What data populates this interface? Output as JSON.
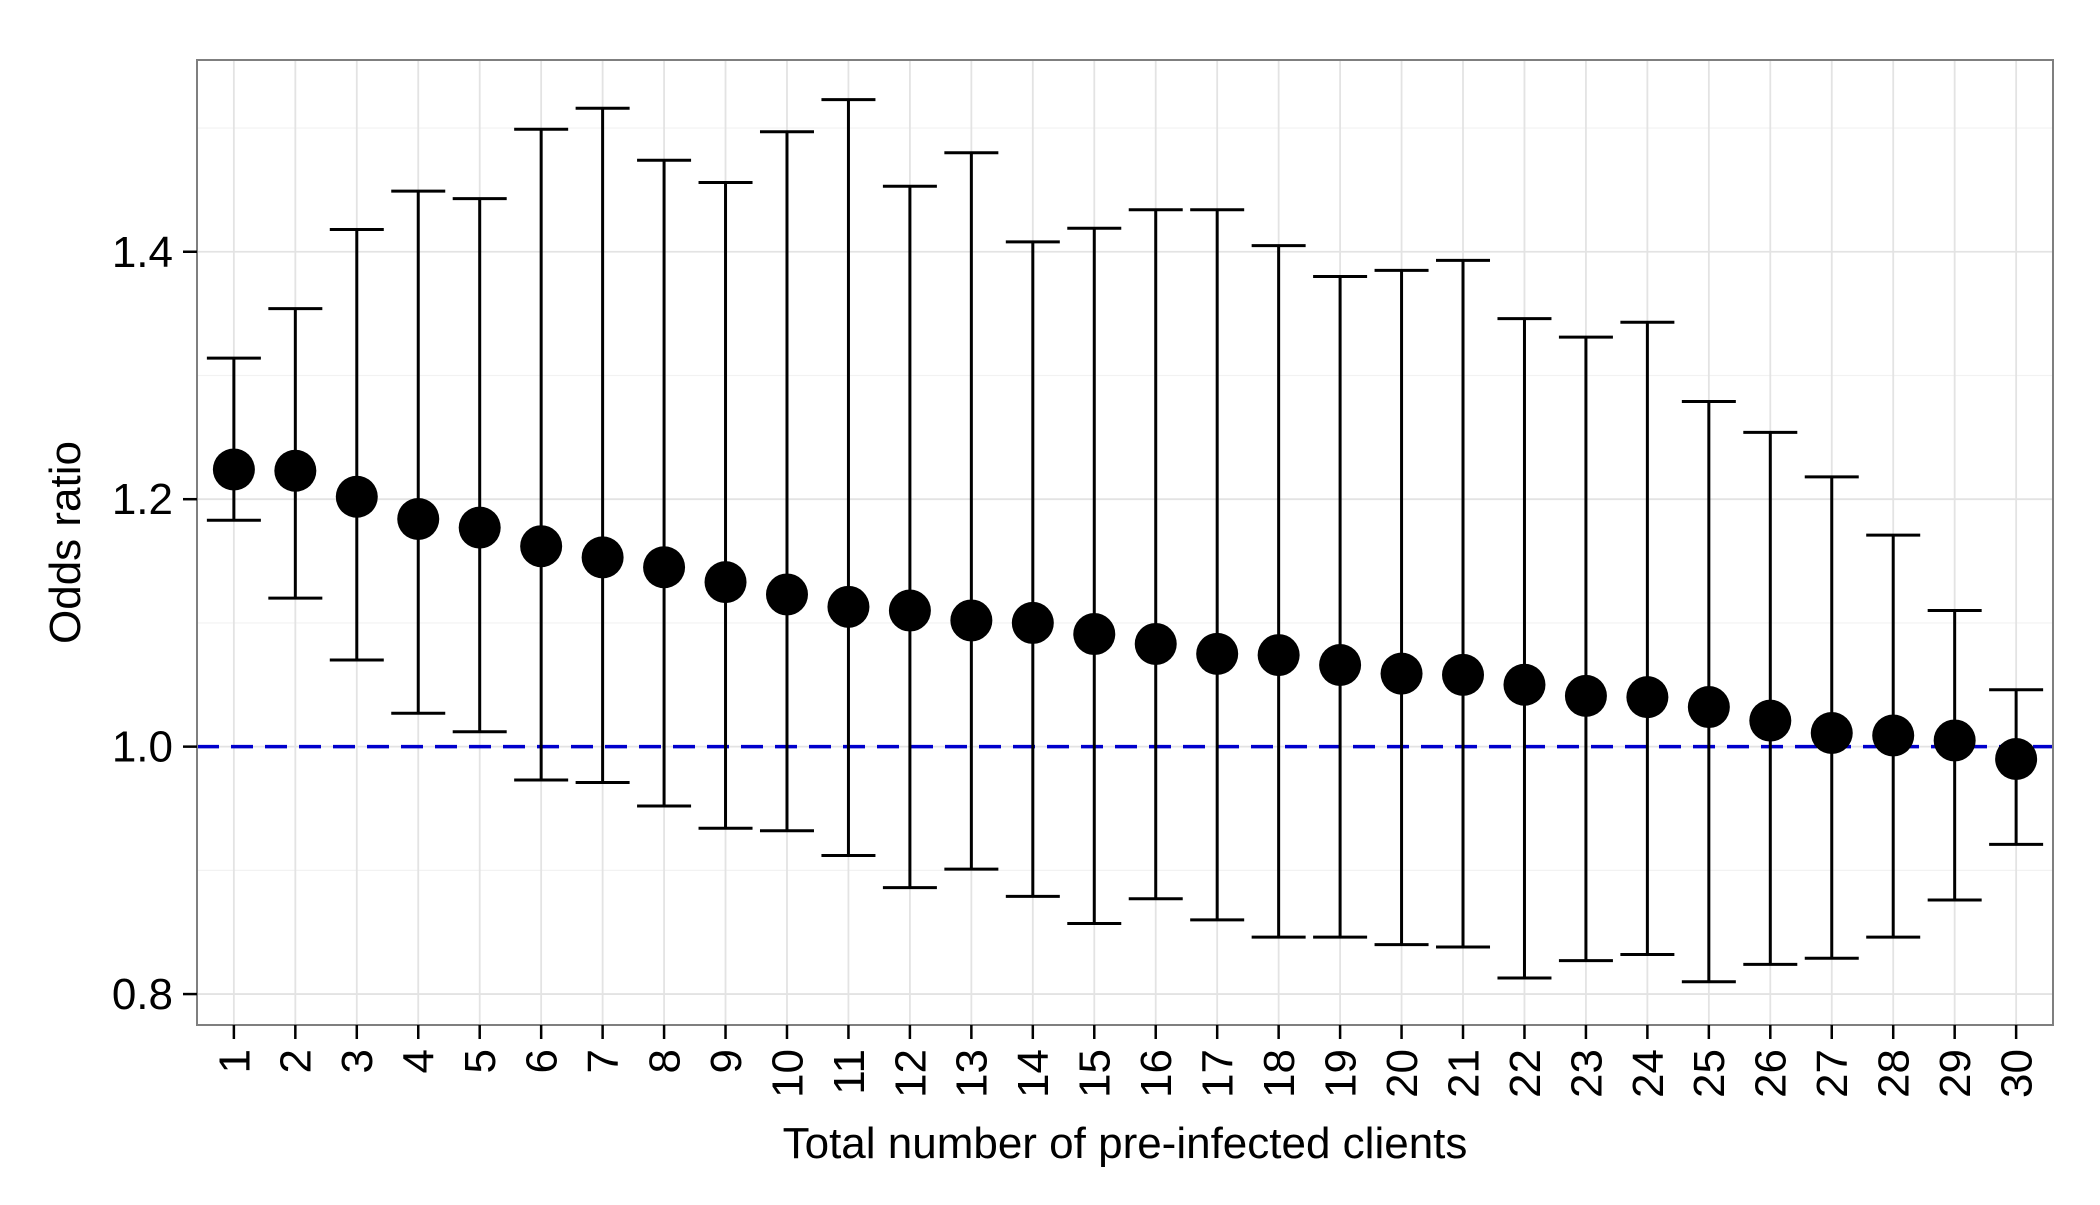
{
  "chart_data": {
    "type": "scatter",
    "title": "",
    "xlabel": "Total number of pre-infected clients",
    "ylabel": "Odds ratio",
    "x": [
      1,
      2,
      3,
      4,
      5,
      6,
      7,
      8,
      9,
      10,
      11,
      12,
      13,
      14,
      15,
      16,
      17,
      18,
      19,
      20,
      21,
      22,
      23,
      24,
      25,
      26,
      27,
      28,
      29,
      30
    ],
    "x_tick_labels": [
      "1",
      "2",
      "3",
      "4",
      "5",
      "6",
      "7",
      "8",
      "9",
      "10",
      "11",
      "12",
      "13",
      "14",
      "15",
      "16",
      "17",
      "18",
      "19",
      "20",
      "21",
      "22",
      "23",
      "24",
      "25",
      "26",
      "27",
      "28",
      "29",
      "30"
    ],
    "series": [
      {
        "values": [
          1.224,
          1.223,
          1.202,
          1.184,
          1.177,
          1.162,
          1.153,
          1.145,
          1.133,
          1.123,
          1.113,
          1.11,
          1.102,
          1.1,
          1.091,
          1.083,
          1.075,
          1.074,
          1.066,
          1.059,
          1.058,
          1.05,
          1.041,
          1.04,
          1.032,
          1.021,
          1.011,
          1.009,
          1.005,
          0.99
        ],
        "lower": [
          1.183,
          1.12,
          1.07,
          1.027,
          1.012,
          0.973,
          0.971,
          0.952,
          0.934,
          0.932,
          0.912,
          0.886,
          0.901,
          0.879,
          0.857,
          0.877,
          0.86,
          0.846,
          0.846,
          0.84,
          0.838,
          0.813,
          0.827,
          0.832,
          0.81,
          0.824,
          0.829,
          0.846,
          0.876,
          0.921
        ],
        "upper": [
          1.314,
          1.354,
          1.418,
          1.449,
          1.443,
          1.499,
          1.516,
          1.474,
          1.456,
          1.497,
          1.523,
          1.453,
          1.48,
          1.408,
          1.419,
          1.434,
          1.434,
          1.405,
          1.38,
          1.385,
          1.393,
          1.346,
          1.331,
          1.343,
          1.279,
          1.254,
          1.218,
          1.171,
          1.11,
          1.046
        ],
        "color": "#000000"
      }
    ],
    "reference_line": {
      "y": 1.0,
      "style": "dashed",
      "color": "#0000cc"
    },
    "ylim": [
      0.775,
      1.555
    ],
    "xlim": [
      0.4,
      30.6
    ],
    "y_ticks": [
      0.8,
      1.0,
      1.2,
      1.4
    ],
    "y_tick_labels": [
      "0.8",
      "1.0",
      "1.2",
      "1.4"
    ],
    "grid": true,
    "legend": "none"
  }
}
